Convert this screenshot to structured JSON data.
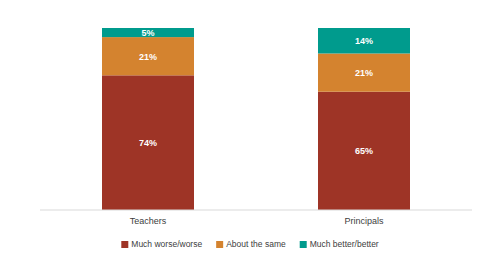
{
  "chart_data": {
    "type": "bar",
    "stacked": true,
    "data_labels": true,
    "tick_labels": "x",
    "legend": "bottom",
    "categories": [
      "Teachers",
      "Principals"
    ],
    "ylim": [
      0,
      100
    ],
    "series": [
      {
        "name": "Much worse/worse",
        "color": "#9e3426",
        "values": [
          74,
          65
        ],
        "value_labels": [
          "74%",
          "65%"
        ]
      },
      {
        "name": "About the same",
        "color": "#d4832f",
        "values": [
          21,
          21
        ],
        "value_labels": [
          "21%",
          "21%"
        ]
      },
      {
        "name": "Much better/better",
        "color": "#009b8d",
        "values": [
          5,
          14
        ],
        "value_labels": [
          "5%",
          "14%"
        ]
      }
    ]
  }
}
